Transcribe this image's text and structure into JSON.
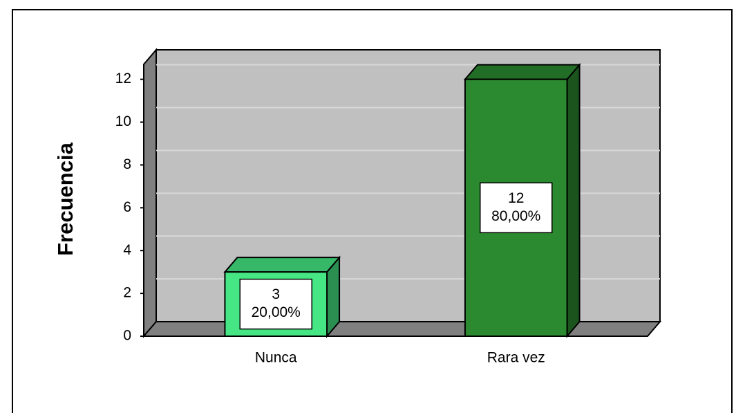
{
  "chart_data": {
    "type": "bar3d",
    "y_label": "Frecuencia",
    "categories": [
      "Nunca",
      "Rara vez"
    ],
    "values": [
      3,
      12
    ],
    "percent_labels": [
      "20,00%",
      "80,00%"
    ],
    "colors": [
      "#45e683",
      "#2b892f"
    ],
    "ylim": [
      0,
      12.7
    ],
    "yticks": [
      0,
      2,
      4,
      6,
      8,
      10,
      12
    ],
    "grid": true
  }
}
